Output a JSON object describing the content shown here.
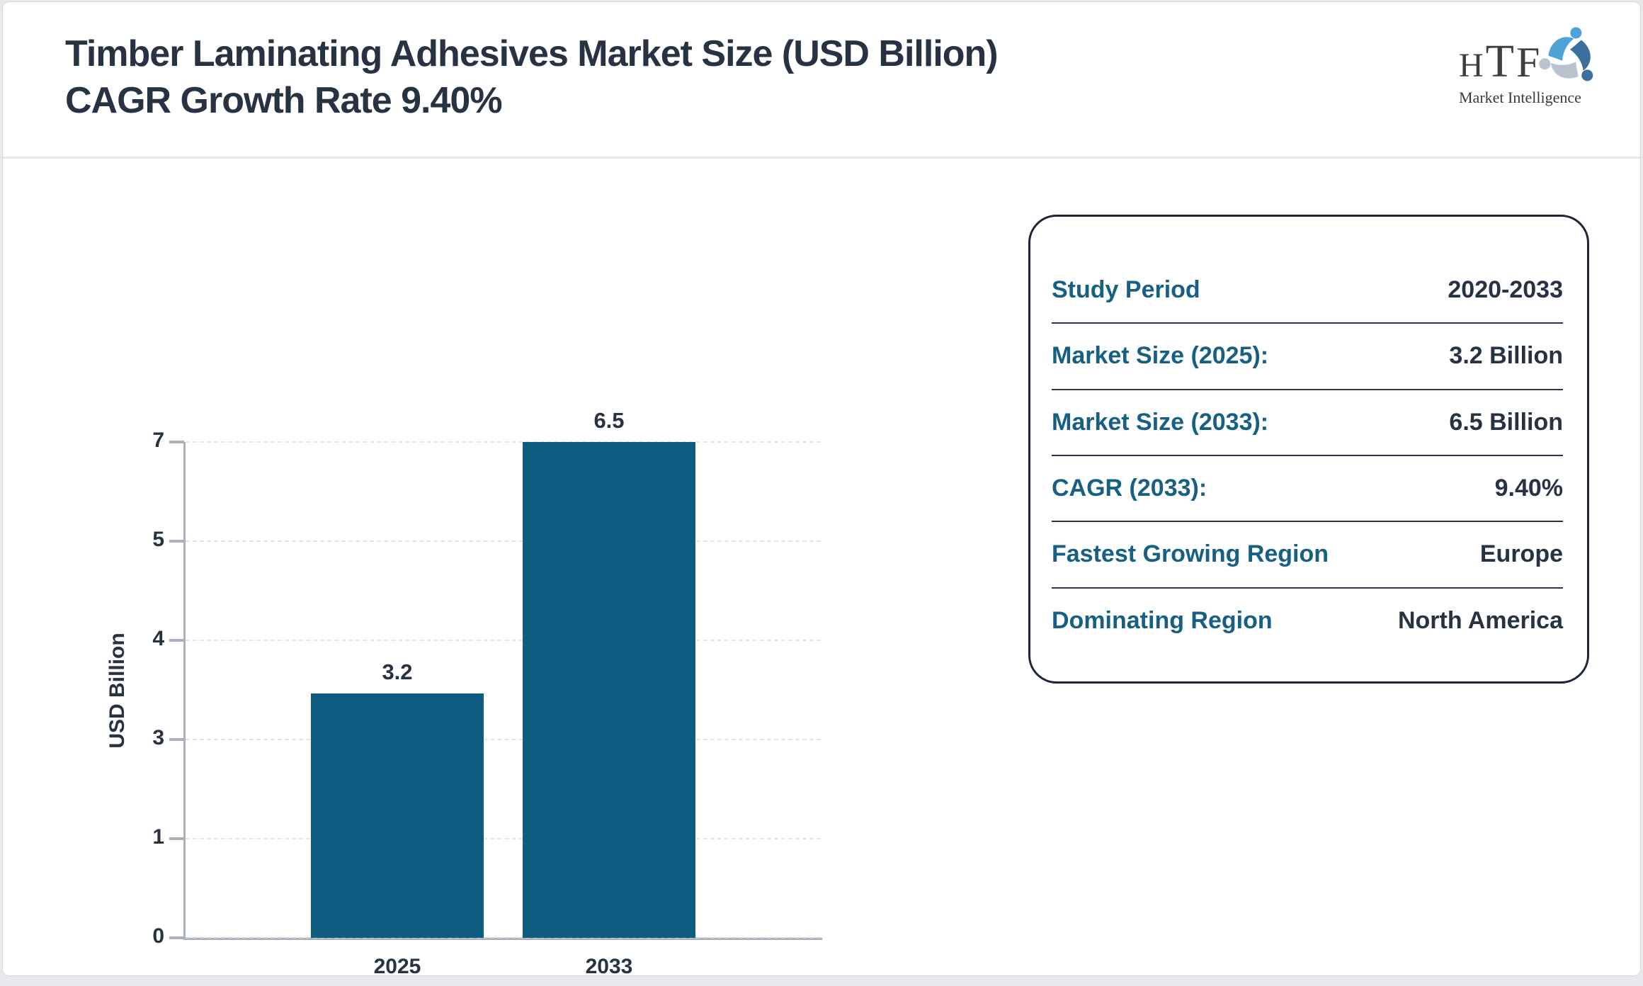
{
  "page": {
    "title": "Timber Laminating Adhesives Market Size (USD Billion) CAGR Growth Rate 9.40%"
  },
  "logo": {
    "acronym": "HTF",
    "letters": {
      "h": "H",
      "t": "T",
      "f": "F"
    },
    "subtitle": "Market Intelligence",
    "icon": "people-swirl-icon",
    "colors": {
      "light_blue": "#4da3d8",
      "gray": "#b9c3ce",
      "steel_blue": "#3c6f9e",
      "text_gray": "#3e3e3e"
    }
  },
  "chart_data": {
    "type": "bar",
    "title": "Timber Laminating Adhesives Market Size (USD Billion) CAGR Growth Rate 9.40%",
    "categories": [
      "2025",
      "2033"
    ],
    "values": [
      3.2,
      6.5
    ],
    "bar_labels": [
      "3.2",
      "6.5"
    ],
    "xlabel": "",
    "ylabel": "USD Billion",
    "yticks": [
      0,
      1,
      3,
      4,
      5,
      7
    ],
    "ylim": [
      0,
      7
    ],
    "grid": true,
    "legend": "none",
    "bar_color": "#0e5c80"
  },
  "info_card": {
    "rows": [
      {
        "label": "Study Period",
        "value": "2020-2033"
      },
      {
        "label": "Market Size (2025):",
        "value": "3.2 Billion"
      },
      {
        "label": "Market Size (2033):",
        "value": "6.5 Billion"
      },
      {
        "label": "CAGR (2033):",
        "value": "9.40%"
      },
      {
        "label": "Fastest Growing Region",
        "value": "Europe"
      },
      {
        "label": "Dominating Region",
        "value": "North America"
      }
    ],
    "label_color": "#176083",
    "value_color": "#273243"
  }
}
